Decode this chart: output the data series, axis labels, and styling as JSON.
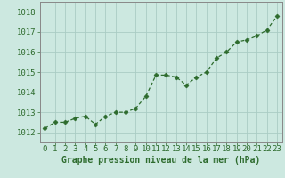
{
  "x": [
    0,
    1,
    2,
    3,
    4,
    5,
    6,
    7,
    8,
    9,
    10,
    11,
    12,
    13,
    14,
    15,
    16,
    17,
    18,
    19,
    20,
    21,
    22,
    23
  ],
  "y": [
    1012.2,
    1012.5,
    1012.5,
    1012.7,
    1012.8,
    1012.4,
    1012.8,
    1013.0,
    1013.0,
    1013.2,
    1013.8,
    1014.85,
    1014.85,
    1014.75,
    1014.35,
    1014.75,
    1015.0,
    1015.7,
    1016.0,
    1016.5,
    1016.6,
    1016.8,
    1017.1,
    1017.8
  ],
  "line_color": "#2d6b2d",
  "marker": "D",
  "markersize": 2.5,
  "background_color": "#cce8e0",
  "grid_color": "#aaccc4",
  "xlabel": "Graphe pression niveau de la mer (hPa)",
  "xlabel_fontsize": 7,
  "ylabel_ticks": [
    1012,
    1013,
    1014,
    1015,
    1016,
    1017,
    1018
  ],
  "ylim": [
    1011.5,
    1018.5
  ],
  "xlim": [
    -0.5,
    23.5
  ],
  "tick_fontsize": 6.5,
  "label_color": "#2d6b2d",
  "axis_color": "#888888",
  "spine_color": "#888888"
}
